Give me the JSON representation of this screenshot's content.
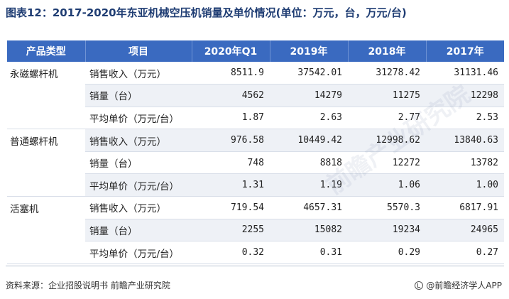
{
  "title": "图表12：2017-2020年东亚机械空压机销量及单价情况(单位：万元，台，万元/台)",
  "table": {
    "headers": [
      "产品类型",
      "项目",
      "2020年Q1",
      "2019年",
      "2018年",
      "2017年"
    ],
    "groups": [
      {
        "category": "永磁螺杆机",
        "rows": [
          {
            "item": "销售收入（万元）",
            "values": [
              "8511.9",
              "37542.01",
              "31278.42",
              "31131.46"
            ]
          },
          {
            "item": "销量（台）",
            "values": [
              "4562",
              "14279",
              "11275",
              "12298"
            ]
          },
          {
            "item": "平均单价（万元/台）",
            "values": [
              "1.87",
              "2.63",
              "2.77",
              "2.53"
            ]
          }
        ]
      },
      {
        "category": "普通螺杆机",
        "rows": [
          {
            "item": "销售收入（万元）",
            "values": [
              "976.58",
              "10449.42",
              "12998.62",
              "13840.63"
            ]
          },
          {
            "item": "销量（台）",
            "values": [
              "748",
              "8818",
              "12272",
              "13782"
            ]
          },
          {
            "item": "平均单价（万元/台）",
            "values": [
              "1.31",
              "1.19",
              "1.06",
              "1.00"
            ]
          }
        ]
      },
      {
        "category": "活塞机",
        "rows": [
          {
            "item": "销售收入（万元）",
            "values": [
              "719.54",
              "4657.31",
              "5570.3",
              "6817.91"
            ]
          },
          {
            "item": "销量（台）",
            "values": [
              "2255",
              "15082",
              "19234",
              "24965"
            ]
          },
          {
            "item": "平均单价（万元/台）",
            "values": [
              "0.32",
              "0.31",
              "0.29",
              "0.27"
            ]
          }
        ]
      }
    ]
  },
  "watermark": "前瞻产业研究院",
  "footer": {
    "source": "资料来源：企业招股说明书 前瞻产业研究院",
    "brand": "@前瞻经济学人APP"
  }
}
